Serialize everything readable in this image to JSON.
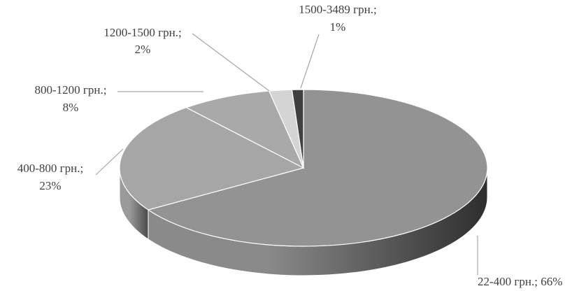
{
  "chart_data": {
    "type": "pie",
    "style": "3d",
    "slices": [
      {
        "category": "22-400 грн.",
        "value": 66,
        "color": "#939393",
        "side_light": "#8a8a8a",
        "side_dark": "#2e2e2e",
        "label_lines": [
          "22-400 грн.; 66%"
        ]
      },
      {
        "category": "400-800 грн.",
        "value": 23,
        "color": "#a6a6a6",
        "side_light": "#9a9a9a",
        "side_dark": "#4a4a4a",
        "label_lines": [
          "400-800 грн.;",
          "23%"
        ]
      },
      {
        "category": "800-1200 грн.",
        "value": 8,
        "color": "#a9a9a9",
        "label_lines": [
          "800-1200 грн.;",
          "8%"
        ]
      },
      {
        "category": "1200-1500 грн.",
        "value": 2,
        "color": "#d4d4d4",
        "label_lines": [
          "1200-1500 грн.;",
          "2%"
        ]
      },
      {
        "category": "1500-3489 грн.",
        "value": 1,
        "color": "#404040",
        "label_lines": [
          "1500-3489 грн.;",
          "1%"
        ]
      }
    ]
  }
}
